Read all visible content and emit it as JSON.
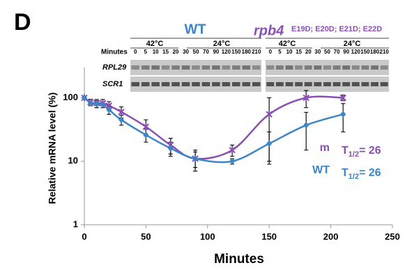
{
  "figure": {
    "panel_label": "D",
    "wt": "WT",
    "mutant_gene": "rpb4",
    "mutant_alleles": "E19D; E20D; E21D; E22D",
    "temp_high": "42°C",
    "temp_low": "24°C",
    "minutes": "Minutes",
    "lanes": [
      "0",
      "5",
      "10",
      "15",
      "20",
      "30",
      "50",
      "70",
      "90",
      "120",
      "150",
      "180",
      "210"
    ],
    "genes": [
      "RPL29",
      "SCR1"
    ]
  },
  "chart_data": {
    "type": "line",
    "xlabel": "Minutes",
    "ylabel": "Relative mRNA level (%)",
    "x": [
      0,
      5,
      10,
      15,
      20,
      30,
      50,
      70,
      90,
      120,
      150,
      180,
      210
    ],
    "series": [
      {
        "name": "m",
        "color": "#8a4fb3",
        "marker": "star",
        "half_life": [
          "T",
          "1/2",
          "= 26"
        ],
        "values": [
          100,
          85,
          82,
          82,
          75,
          60,
          35,
          18,
          11,
          15,
          55,
          100,
          100
        ],
        "errors": [
          5,
          10,
          12,
          12,
          12,
          12,
          10,
          5,
          4,
          3,
          45,
          30,
          10
        ]
      },
      {
        "name": "WT",
        "color": "#3d85c6",
        "marker": "diamond",
        "half_life": [
          "T",
          "1/2",
          "= 26"
        ],
        "values": [
          100,
          83,
          80,
          78,
          65,
          45,
          26,
          16,
          11,
          10,
          19,
          37,
          55
        ],
        "errors": [
          0,
          8,
          10,
          8,
          10,
          8,
          6,
          4,
          3,
          1,
          10,
          22,
          26
        ]
      }
    ],
    "xlim": [
      0,
      250
    ],
    "xticks": [
      0,
      50,
      100,
      150,
      200,
      250
    ],
    "ylim": [
      1,
      300
    ],
    "yticks": [
      1,
      10,
      100
    ],
    "log_y": true,
    "grid": false
  }
}
